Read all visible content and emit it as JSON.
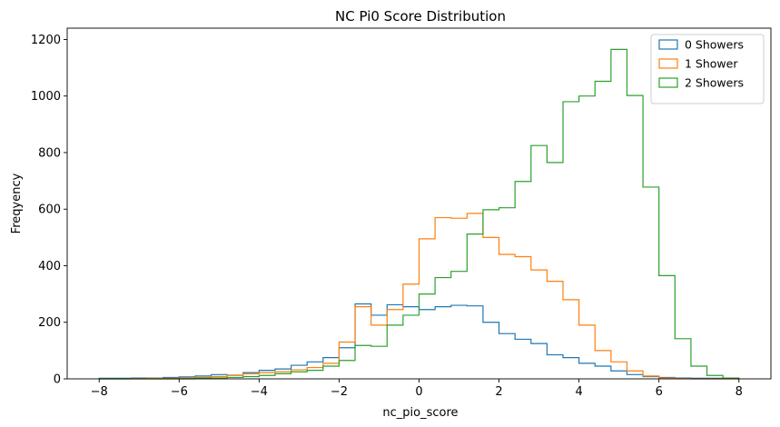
{
  "chart_data": {
    "type": "histogram",
    "title": "NC Pi0 Score Distribution",
    "xlabel": "nc_pio_score",
    "ylabel": "Freqyency",
    "xlim": [
      -8.8,
      8.8
    ],
    "ylim": [
      0,
      1240
    ],
    "x_ticks": [
      -8,
      -6,
      -4,
      -2,
      0,
      2,
      4,
      6,
      8
    ],
    "y_ticks": [
      0,
      200,
      400,
      600,
      800,
      1000,
      1200
    ],
    "legend_position": "top-right",
    "bin_edges": [
      -8.0,
      -7.6,
      -7.2,
      -6.8,
      -6.4,
      -6.0,
      -5.6,
      -5.2,
      -4.8,
      -4.4,
      -4.0,
      -3.6,
      -3.2,
      -2.8,
      -2.4,
      -2.0,
      -1.6,
      -1.2,
      -0.8,
      -0.4,
      0.0,
      0.4,
      0.8,
      1.2,
      1.6,
      2.0,
      2.4,
      2.8,
      3.2,
      3.6,
      4.0,
      4.4,
      4.8,
      5.2,
      5.6,
      6.0,
      6.4,
      6.8,
      7.2,
      7.6,
      8.0
    ],
    "series": [
      {
        "name": "0 Showers",
        "color": "#1f77b4",
        "values": [
          2,
          2,
          3,
          3,
          5,
          7,
          10,
          15,
          13,
          22,
          30,
          35,
          48,
          60,
          75,
          110,
          265,
          225,
          262,
          255,
          245,
          255,
          260,
          258,
          200,
          160,
          140,
          125,
          85,
          75,
          55,
          45,
          28,
          15,
          8,
          5,
          3,
          2,
          2,
          1
        ]
      },
      {
        "name": "1 Shower",
        "color": "#ff7f0e",
        "values": [
          0,
          0,
          1,
          2,
          2,
          3,
          5,
          8,
          12,
          18,
          22,
          25,
          32,
          40,
          55,
          130,
          255,
          190,
          245,
          335,
          495,
          570,
          568,
          585,
          500,
          440,
          432,
          385,
          345,
          280,
          190,
          100,
          60,
          28,
          10,
          3,
          1,
          0,
          0,
          0
        ]
      },
      {
        "name": "2 Showers",
        "color": "#2ca02c",
        "values": [
          0,
          0,
          0,
          0,
          0,
          0,
          2,
          3,
          5,
          8,
          12,
          18,
          25,
          30,
          45,
          65,
          118,
          115,
          190,
          225,
          300,
          358,
          380,
          512,
          598,
          605,
          698,
          825,
          765,
          980,
          1000,
          1052,
          1165,
          1002,
          678,
          365,
          142,
          45,
          12,
          3
        ]
      }
    ]
  }
}
